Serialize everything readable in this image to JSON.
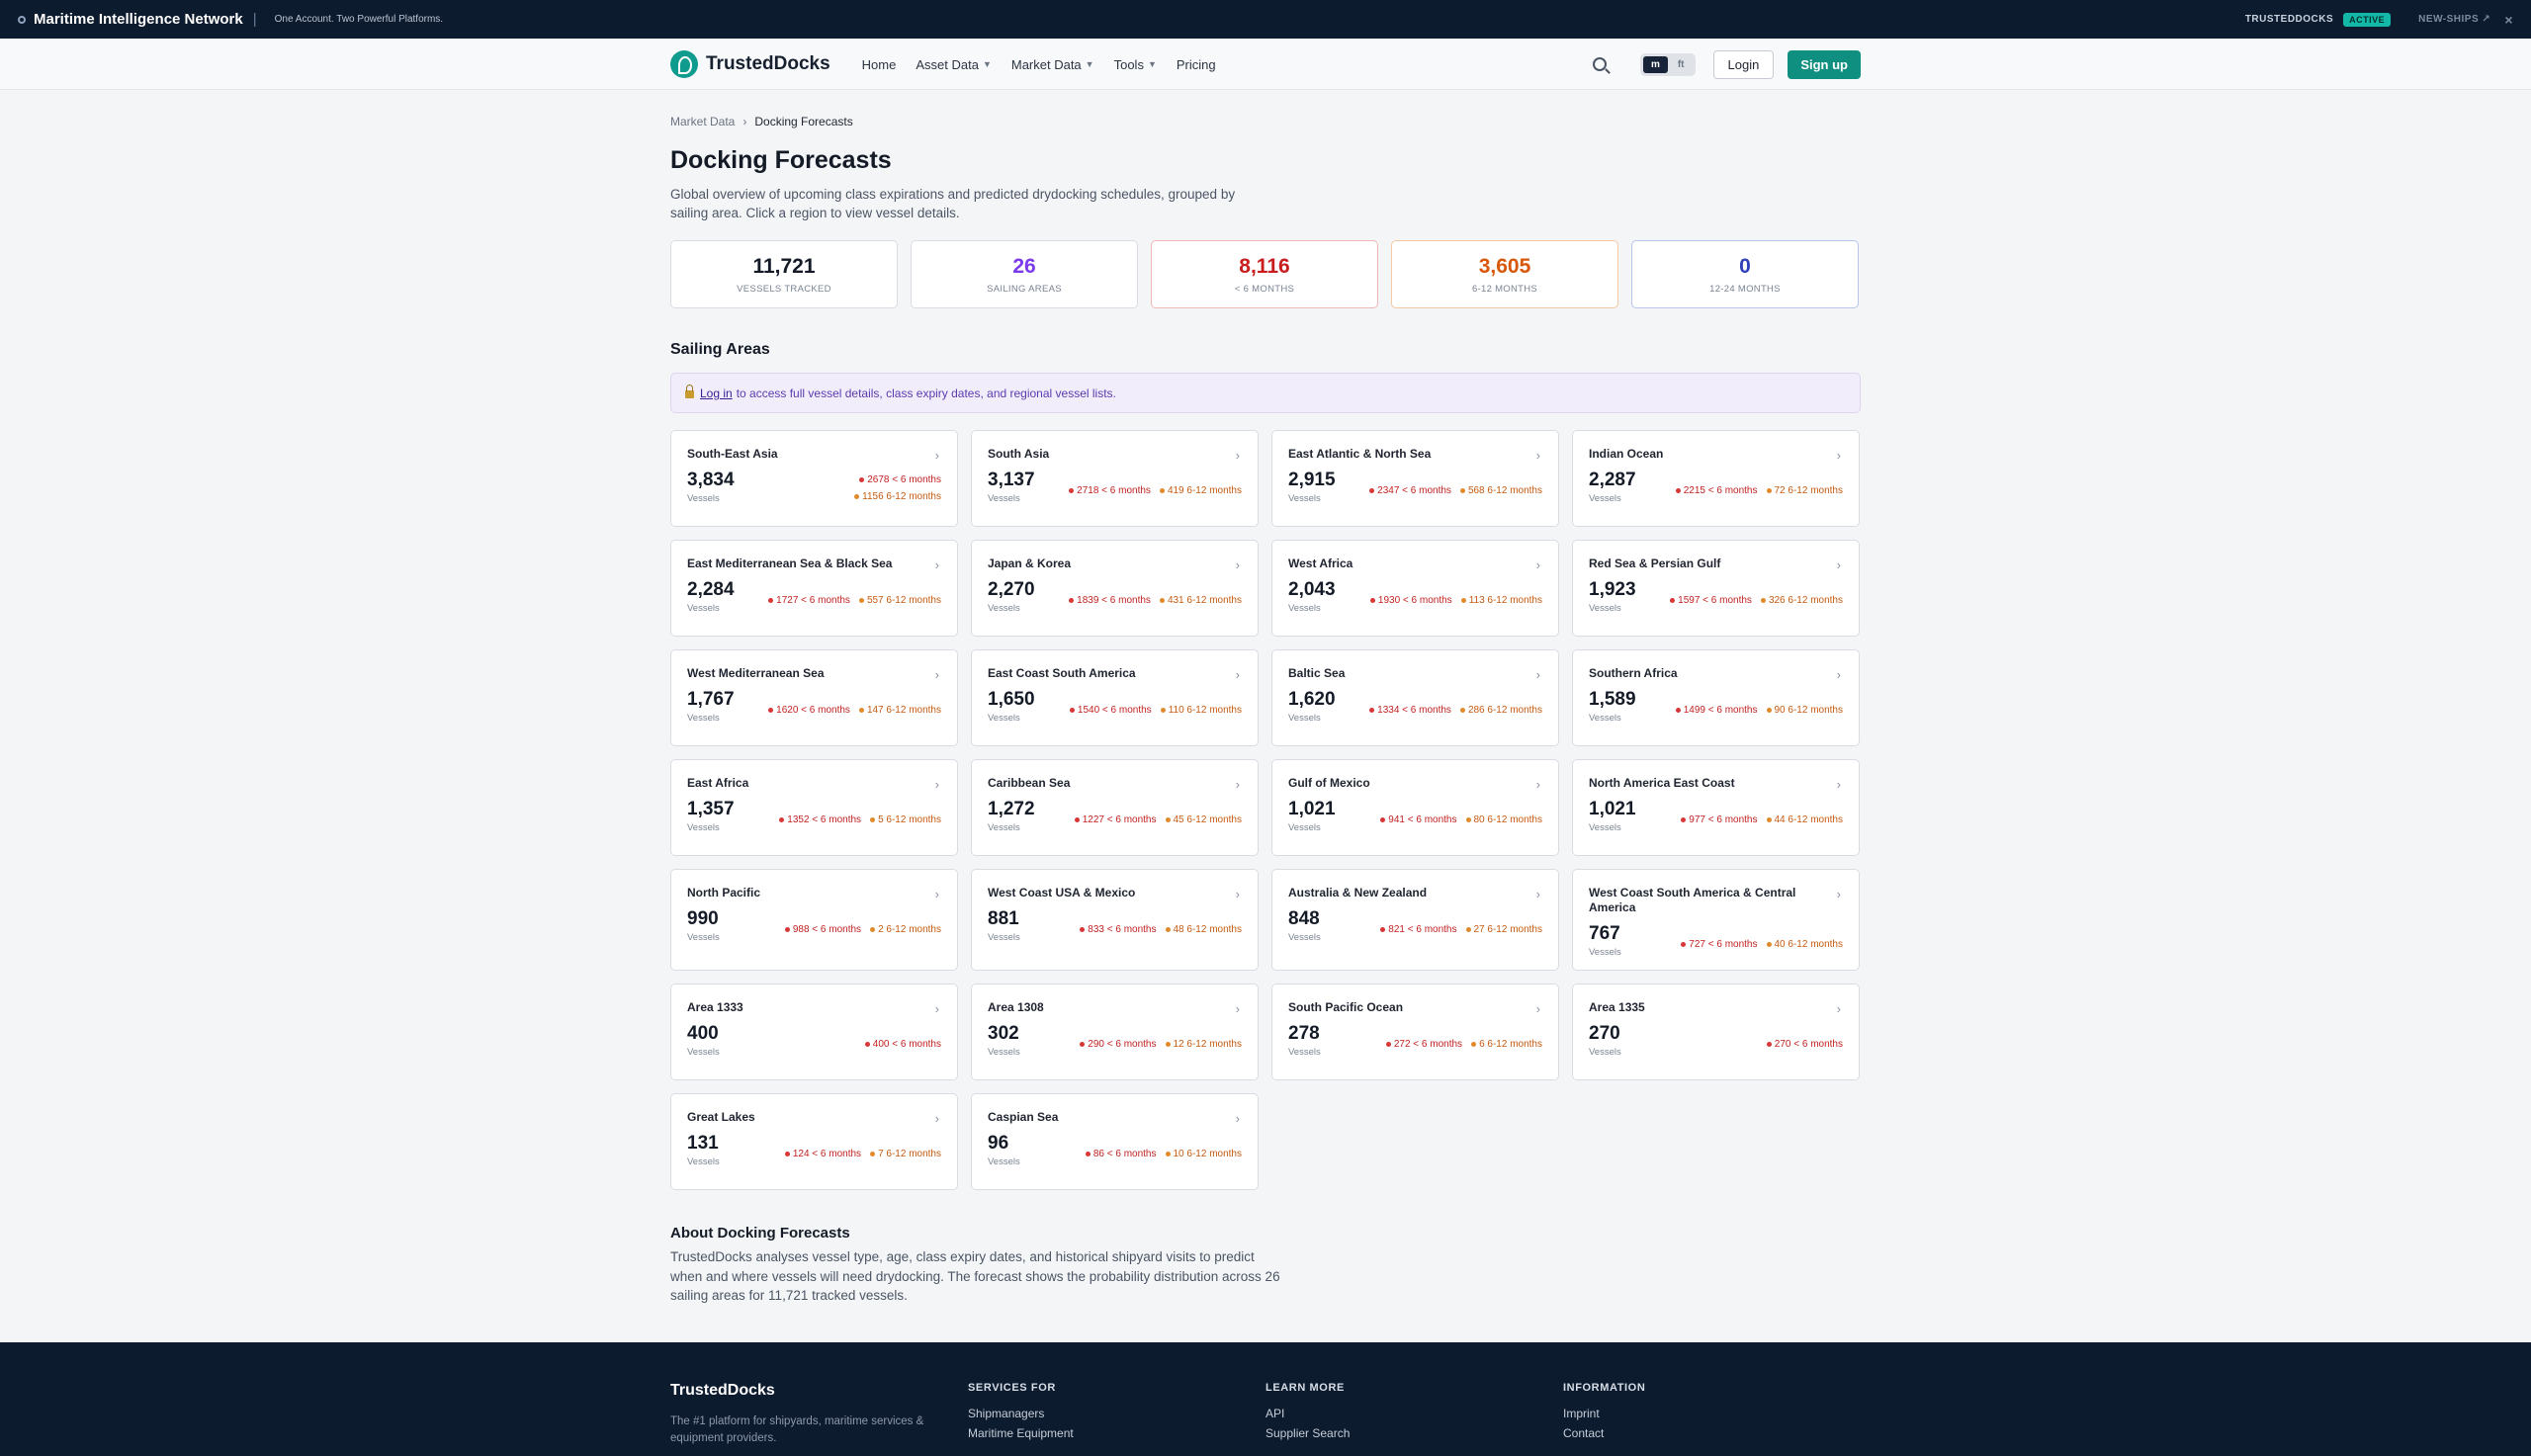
{
  "banner": {
    "brand": "Maritime Intelligence Network",
    "separator": "|",
    "tagline": "One Account. Two Powerful Platforms.",
    "platform_active": "TRUSTEDDOCKS",
    "active_badge": "ACTIVE",
    "platform_other": "NEW-SHIPS ↗",
    "close": "×"
  },
  "nav": {
    "logo_text": "TrustedDocks",
    "menu": [
      "Home",
      "Asset Data",
      "Market Data",
      "Tools",
      "Pricing"
    ],
    "unit_metric": "m",
    "unit_imperial": "ft",
    "login": "Login",
    "signup": "Sign up"
  },
  "breadcrumb": {
    "parent": "Market Data",
    "sep": "›",
    "current": "Docking Forecasts"
  },
  "page": {
    "title": "Docking Forecasts",
    "description": "Global overview of upcoming class expirations and predicted drydocking schedules, grouped by sailing area. Click a region to view vessel details."
  },
  "stats": [
    {
      "value": "11,721",
      "label": "Vessels Tracked",
      "color": "#141b27"
    },
    {
      "value": "26",
      "label": "Sailing Areas",
      "color": "#7c3aed"
    },
    {
      "value": "8,116",
      "label": "< 6 Months",
      "color": "#c81e1e"
    },
    {
      "value": "3,605",
      "label": "6-12 Months",
      "color": "#d9570b"
    },
    {
      "value": "0",
      "label": "12-24 Months",
      "color": "#2f3fb8"
    }
  ],
  "section": {
    "title": "Sailing Areas",
    "notice_link": "Log in",
    "notice_text": "to access full vessel details, class expiry dates, and regional vessel lists."
  },
  "vessels_label": "Vessels",
  "areas": [
    {
      "name": "South-East Asia",
      "count": "3,834",
      "lt6": "2678 < 6 months",
      "m6_12": "1156 6-12 months",
      "stack": true
    },
    {
      "name": "South Asia",
      "count": "3,137",
      "lt6": "2718 < 6 months",
      "m6_12": "419 6-12 months"
    },
    {
      "name": "East Atlantic & North Sea",
      "count": "2,915",
      "lt6": "2347 < 6 months",
      "m6_12": "568 6-12 months"
    },
    {
      "name": "Indian Ocean",
      "count": "2,287",
      "lt6": "2215 < 6 months",
      "m6_12": "72 6-12 months"
    },
    {
      "name": "East Mediterranean Sea & Black Sea",
      "count": "2,284",
      "lt6": "1727 < 6 months",
      "m6_12": "557 6-12 months"
    },
    {
      "name": "Japan & Korea",
      "count": "2,270",
      "lt6": "1839 < 6 months",
      "m6_12": "431 6-12 months"
    },
    {
      "name": "West Africa",
      "count": "2,043",
      "lt6": "1930 < 6 months",
      "m6_12": "113 6-12 months"
    },
    {
      "name": "Red Sea & Persian Gulf",
      "count": "1,923",
      "lt6": "1597 < 6 months",
      "m6_12": "326 6-12 months"
    },
    {
      "name": "West Mediterranean Sea",
      "count": "1,767",
      "lt6": "1620 < 6 months",
      "m6_12": "147 6-12 months"
    },
    {
      "name": "East Coast South America",
      "count": "1,650",
      "lt6": "1540 < 6 months",
      "m6_12": "110 6-12 months"
    },
    {
      "name": "Baltic Sea",
      "count": "1,620",
      "lt6": "1334 < 6 months",
      "m6_12": "286 6-12 months"
    },
    {
      "name": "Southern Africa",
      "count": "1,589",
      "lt6": "1499 < 6 months",
      "m6_12": "90 6-12 months"
    },
    {
      "name": "East Africa",
      "count": "1,357",
      "lt6": "1352 < 6 months",
      "m6_12": "5 6-12 months"
    },
    {
      "name": "Caribbean Sea",
      "count": "1,272",
      "lt6": "1227 < 6 months",
      "m6_12": "45 6-12 months"
    },
    {
      "name": "Gulf of Mexico",
      "count": "1,021",
      "lt6": "941 < 6 months",
      "m6_12": "80 6-12 months"
    },
    {
      "name": "North America East Coast",
      "count": "1,021",
      "lt6": "977 < 6 months",
      "m6_12": "44 6-12 months"
    },
    {
      "name": "North Pacific",
      "count": "990",
      "lt6": "988 < 6 months",
      "m6_12": "2 6-12 months"
    },
    {
      "name": "West Coast USA & Mexico",
      "count": "881",
      "lt6": "833 < 6 months",
      "m6_12": "48 6-12 months"
    },
    {
      "name": "Australia & New Zealand",
      "count": "848",
      "lt6": "821 < 6 months",
      "m6_12": "27 6-12 months"
    },
    {
      "name": "West Coast South America & Central America",
      "count": "767",
      "lt6": "727 < 6 months",
      "m6_12": "40 6-12 months"
    },
    {
      "name": "Area 1333",
      "count": "400",
      "lt6": "400 < 6 months",
      "m6_12": ""
    },
    {
      "name": "Area 1308",
      "count": "302",
      "lt6": "290 < 6 months",
      "m6_12": "12 6-12 months"
    },
    {
      "name": "South Pacific Ocean",
      "count": "278",
      "lt6": "272 < 6 months",
      "m6_12": "6 6-12 months"
    },
    {
      "name": "Area 1335",
      "count": "270",
      "lt6": "270 < 6 months",
      "m6_12": ""
    },
    {
      "name": "Great Lakes",
      "count": "131",
      "lt6": "124 < 6 months",
      "m6_12": "7 6-12 months"
    },
    {
      "name": "Caspian Sea",
      "count": "96",
      "lt6": "86 < 6 months",
      "m6_12": "10 6-12 months"
    }
  ],
  "about": {
    "title": "About Docking Forecasts",
    "text": "TrustedDocks analyses vessel type, age, class expiry dates, and historical shipyard visits to predict when and where vessels will need drydocking. The forecast shows the probability distribution across 26 sailing areas for 11,721 tracked vessels."
  },
  "footer": {
    "brand": "TrustedDocks",
    "tagline": "The #1 platform for shipyards, maritime services & equipment providers.",
    "columns": [
      {
        "title": "SERVICES FOR",
        "links": [
          "Shipmanagers",
          "Maritime Equipment"
        ]
      },
      {
        "title": "LEARN MORE",
        "links": [
          "API",
          "Supplier Search"
        ]
      },
      {
        "title": "INFORMATION",
        "links": [
          "Imprint",
          "Contact"
        ]
      }
    ]
  }
}
